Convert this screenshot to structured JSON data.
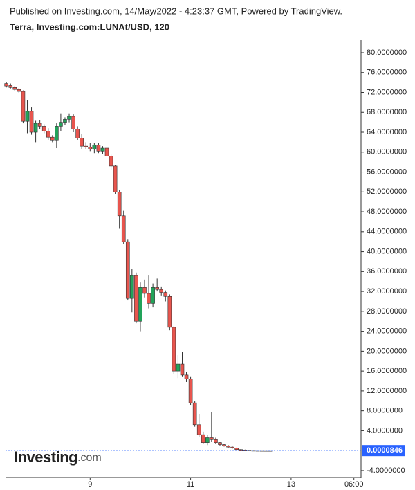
{
  "chart_data": {
    "type": "candlestick",
    "header": "Published on Investing.com, 14/May/2022 - 4:23:37 GMT, Powered by TradingView.",
    "title": "Terra, Investing.com:LUNAt/USD, 120",
    "watermark": [
      "Investing",
      ".com"
    ],
    "x": [
      8,
      10,
      12,
      14,
      16,
      18,
      20,
      22,
      24,
      26,
      28,
      30,
      32,
      34,
      36,
      38,
      40,
      42,
      44,
      46,
      48,
      50,
      52,
      54,
      56,
      58,
      60,
      62,
      64,
      66,
      68,
      70,
      72,
      74,
      76,
      78,
      80,
      82,
      84,
      86,
      88,
      90,
      92,
      94,
      96,
      98,
      100,
      102,
      104,
      106,
      108,
      110,
      112,
      114,
      116,
      118,
      120,
      122,
      124,
      126,
      128,
      130,
      132,
      134
    ],
    "open": [
      73.8,
      73.4,
      73.0,
      72.6,
      72.2,
      66.2,
      68.2,
      64.0,
      65.8,
      65.2,
      64.2,
      63.0,
      62.3,
      65.2,
      66.0,
      66.6,
      67.2,
      64.6,
      62.8,
      61.2,
      61.0,
      60.6,
      61.4,
      60.2,
      60.8,
      59.2,
      57.2,
      52.0,
      47.2,
      42.0,
      30.6,
      35.2,
      26.0,
      32.8,
      31.6,
      29.6,
      32.8,
      32.4,
      31.8,
      31.0,
      24.8,
      16.0,
      17.4,
      15.2,
      14.4,
      9.6,
      5.2,
      3.2,
      1.6,
      2.6,
      2.2,
      1.6,
      1.2,
      0.9,
      0.7,
      0.5,
      0.2,
      0.12,
      0.08,
      0.04,
      0.02,
      0.01,
      0.006,
      0.004
    ],
    "high": [
      74.1,
      73.8,
      73.3,
      72.9,
      72.4,
      70.5,
      69.0,
      66.3,
      66.4,
      65.6,
      64.8,
      63.4,
      65.8,
      67.8,
      67.0,
      67.8,
      67.6,
      65.2,
      63.6,
      62.0,
      61.8,
      61.8,
      61.9,
      61.2,
      61.0,
      59.5,
      57.4,
      52.4,
      48.2,
      42.4,
      36.6,
      35.8,
      33.8,
      34.4,
      35.2,
      33.6,
      34.6,
      33.0,
      32.2,
      31.4,
      25.0,
      19.2,
      19.8,
      15.8,
      14.8,
      10.0,
      7.4,
      3.8,
      3.2,
      7.8,
      2.6,
      1.8,
      1.4,
      1.1,
      0.8,
      0.6,
      0.3,
      0.2,
      0.1,
      0.06,
      0.03,
      0.015,
      0.02,
      0.005
    ],
    "low": [
      73.0,
      72.8,
      72.3,
      71.8,
      65.8,
      63.8,
      63.5,
      62.0,
      64.6,
      63.8,
      62.5,
      62.0,
      60.8,
      64.2,
      65.5,
      66.0,
      64.0,
      62.4,
      60.6,
      60.6,
      60.2,
      59.8,
      59.8,
      59.6,
      58.6,
      56.5,
      51.6,
      44.6,
      41.6,
      30.2,
      27.8,
      25.6,
      24.0,
      30.8,
      28.6,
      28.8,
      32.0,
      31.2,
      30.0,
      24.2,
      15.4,
      14.6,
      14.8,
      13.8,
      9.2,
      4.8,
      2.8,
      1.4,
      1.1,
      1.8,
      1.4,
      1.0,
      0.8,
      0.6,
      0.4,
      0.15,
      0.1,
      0.05,
      0.03,
      0.01,
      0.005,
      0.003,
      0.002,
      0.001
    ],
    "close": [
      73.3,
      73.0,
      72.6,
      72.2,
      66.2,
      68.2,
      64.0,
      65.8,
      65.2,
      64.2,
      63.0,
      62.3,
      65.2,
      66.0,
      66.6,
      67.2,
      64.6,
      62.8,
      61.2,
      61.0,
      60.6,
      61.4,
      60.2,
      60.8,
      59.2,
      57.2,
      52.0,
      47.2,
      42.0,
      30.6,
      35.2,
      26.0,
      32.8,
      31.6,
      29.6,
      32.8,
      32.4,
      31.8,
      31.0,
      24.8,
      16.0,
      17.4,
      15.2,
      14.4,
      9.6,
      5.2,
      3.2,
      1.6,
      2.6,
      2.2,
      1.6,
      1.2,
      0.9,
      0.7,
      0.5,
      0.2,
      0.12,
      0.08,
      0.04,
      0.02,
      0.01,
      0.006,
      0.004,
      0.002
    ],
    "up_color": "#22a35a",
    "down_color": "#e8554e",
    "xlim": [
      7.6,
      177.4
    ],
    "xticks": [
      {
        "value": 48,
        "label": "9"
      },
      {
        "value": 96,
        "label": "11"
      },
      {
        "value": 144,
        "label": "13"
      },
      {
        "value": 174,
        "label": "06:00"
      }
    ],
    "ylim": [
      -5.4,
      82.5
    ],
    "yticks": [
      {
        "value": -4,
        "label": "-4.0000000"
      },
      {
        "value": 4,
        "label": "4.0000000"
      },
      {
        "value": 8,
        "label": "8.0000000"
      },
      {
        "value": 12,
        "label": "12.0000000"
      },
      {
        "value": 16,
        "label": "16.0000000"
      },
      {
        "value": 20,
        "label": "20.0000000"
      },
      {
        "value": 24,
        "label": "24.0000000"
      },
      {
        "value": 28,
        "label": "28.0000000"
      },
      {
        "value": 32,
        "label": "32.0000000"
      },
      {
        "value": 36,
        "label": "36.0000000"
      },
      {
        "value": 40,
        "label": "40.0000000"
      },
      {
        "value": 44,
        "label": "44.0000000"
      },
      {
        "value": 48,
        "label": "48.0000000"
      },
      {
        "value": 52,
        "label": "52.0000000"
      },
      {
        "value": 56,
        "label": "56.0000000"
      },
      {
        "value": 60,
        "label": "60.0000000"
      },
      {
        "value": 64,
        "label": "64.0000000"
      },
      {
        "value": 68,
        "label": "68.0000000"
      },
      {
        "value": 72,
        "label": "72.0000000"
      },
      {
        "value": 76,
        "label": "76.0000000"
      },
      {
        "value": 80,
        "label": "80.0000000"
      }
    ],
    "last_price": 8.46e-05,
    "last_price_color": "#2962ff"
  }
}
